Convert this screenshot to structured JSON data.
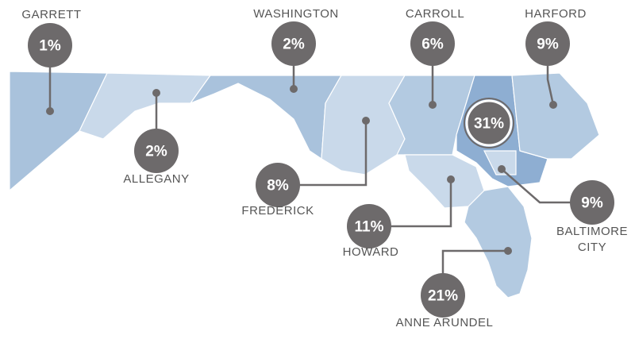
{
  "counties": [
    {
      "name": "GARRETT",
      "value": 1,
      "value_label": "1%"
    },
    {
      "name": "WASHINGTON",
      "value": 2,
      "value_label": "2%"
    },
    {
      "name": "CARROLL",
      "value": 6,
      "value_label": "6%"
    },
    {
      "name": "HARFORD",
      "value": 9,
      "value_label": "9%"
    },
    {
      "name": "ALLEGANY",
      "value": 2,
      "value_label": "2%"
    },
    {
      "value": 31,
      "value_label": "31%"
    },
    {
      "name": "FREDERICK",
      "value": 8,
      "value_label": "8%"
    },
    {
      "name": "HOWARD",
      "value": 11,
      "value_label": "11%"
    },
    {
      "name": "BALTIMORE CITY",
      "value": 9,
      "value_label": "9%"
    },
    {
      "name": "ANNE ARUNDEL",
      "value": 21,
      "value_label": "21%"
    }
  ]
}
